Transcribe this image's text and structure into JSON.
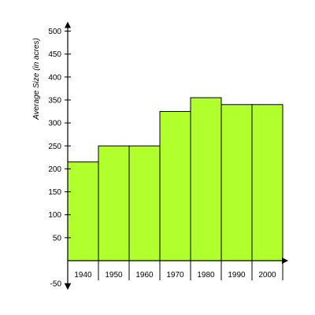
{
  "chart_data": {
    "type": "bar",
    "title": "",
    "xlabel": "",
    "ylabel": "Average Size (in acres)",
    "categories": [
      "1940",
      "1950",
      "1960",
      "1970",
      "1980",
      "1990",
      "2000"
    ],
    "values": [
      215,
      250,
      250,
      325,
      355,
      340,
      340
    ],
    "ylim": [
      -50,
      500
    ],
    "yticks": [
      -50,
      50,
      100,
      150,
      200,
      250,
      300,
      350,
      400,
      450,
      500
    ],
    "grid": false,
    "legend": "none",
    "bar_color": "#b2ff2e",
    "bar_outline_color": "#000000",
    "axis_color": "#000000"
  }
}
